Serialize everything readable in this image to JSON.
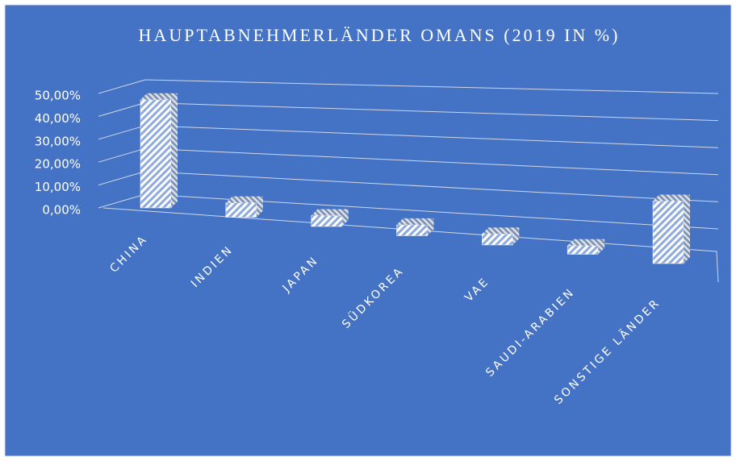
{
  "chart_data": {
    "type": "bar3d",
    "title": "HAUPTABNEHMERLÄNDER OMANS (2019 IN %)",
    "categories": [
      "CHINA",
      "INDIEN",
      "JAPAN",
      "SÜDKOREA",
      "VAE",
      "SAUDI-ARABIEN",
      "SONSTIGE LÄNDER"
    ],
    "values": [
      45.5,
      6,
      4.5,
      4.5,
      4.5,
      3.5,
      25
    ],
    "color": "#c9d6ee",
    "ylim": [
      0,
      50
    ],
    "yticks": [
      {
        "value": 0,
        "label": "0,00%"
      },
      {
        "value": 10,
        "label": "10,00%"
      },
      {
        "value": 20,
        "label": "20,00%"
      },
      {
        "value": 30,
        "label": "30,00%"
      },
      {
        "value": 40,
        "label": "40,00%"
      },
      {
        "value": 50,
        "label": "50,00%"
      }
    ],
    "grid": true
  }
}
